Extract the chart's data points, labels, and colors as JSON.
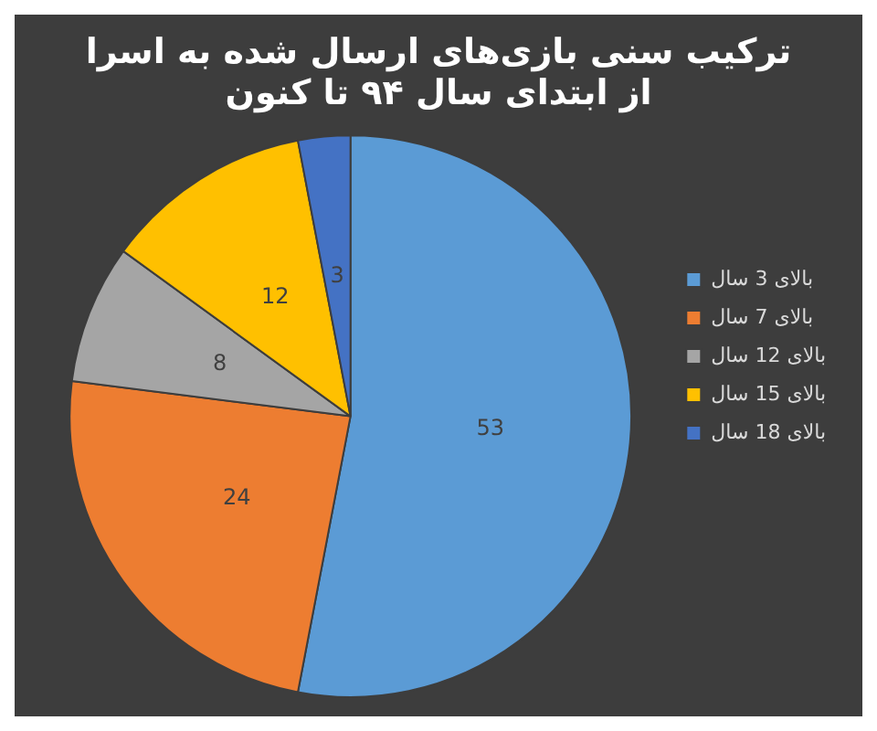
{
  "chart_data": {
    "type": "pie",
    "title": "ترکیب سنی بازی‌های ارسال شده به اسرا",
    "subtitle": "از ابتدای سال ۹۴ تا کنون",
    "categories": [
      "بالای 3 سال",
      "بالای 7 سال",
      "بالای 12 سال",
      "بالای 15 سال",
      "بالای 18 سال"
    ],
    "values": [
      53,
      24,
      8,
      12,
      3
    ],
    "colors": [
      "#5b9bd5",
      "#ed7d31",
      "#a5a5a5",
      "#ffc000",
      "#4472c4"
    ],
    "data_labels": true,
    "legend": "right"
  }
}
